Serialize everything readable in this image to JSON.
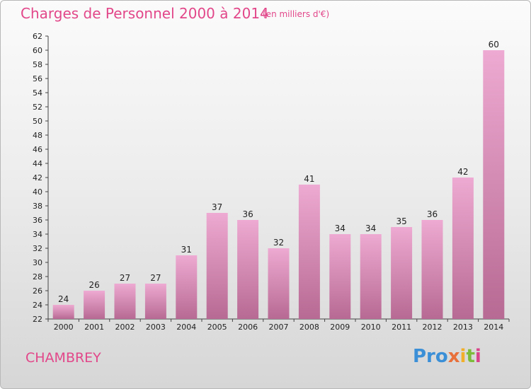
{
  "header": {
    "title": "Charges de Personnel 2000 à 2014",
    "unit": "(en milliers d'€)"
  },
  "footer": {
    "commune": "CHAMBREY",
    "logo": [
      "Pro",
      "x",
      "i",
      "t",
      "i"
    ]
  },
  "colors": {
    "text_accent": "#e2478a",
    "bar_top": "#eeaad2",
    "bar_bottom": "#b76a93"
  },
  "chart_data": {
    "type": "bar",
    "title": "Charges de Personnel 2000 à 2014",
    "subtitle": "(en milliers d'€)",
    "categories": [
      "2000",
      "2001",
      "2002",
      "2003",
      "2004",
      "2005",
      "2006",
      "2007",
      "2008",
      "2009",
      "2010",
      "2011",
      "2012",
      "2013",
      "2014"
    ],
    "values": [
      24,
      26,
      27,
      27,
      31,
      37,
      36,
      32,
      41,
      34,
      34,
      35,
      36,
      42,
      60
    ],
    "ylim": [
      22,
      62
    ],
    "ytick_step": 2,
    "grid": false,
    "legend": "none"
  }
}
